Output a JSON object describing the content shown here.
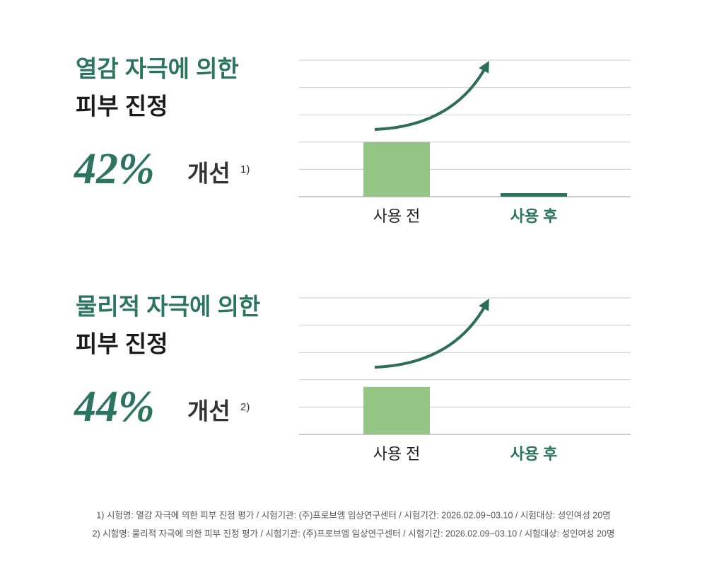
{
  "chart_data": [
    {
      "type": "bar",
      "title": [
        "열감 자극에 의한",
        "피부 진정"
      ],
      "highlight": "42%",
      "highlight_unit": "개선",
      "note_ref": "1)",
      "categories": [
        "사용 전",
        "사용 후"
      ],
      "values": [
        2,
        0.13
      ],
      "colors": [
        "#95c584",
        "#2b7560"
      ],
      "ylim": [
        0,
        5
      ],
      "yticks": [
        0,
        1,
        2,
        3,
        4,
        5
      ],
      "grid": true,
      "show_tick_labels": false,
      "arrow_color": "#2b6e5a"
    },
    {
      "type": "bar",
      "title": [
        "물리적 자극에 의한",
        "피부 진정"
      ],
      "highlight": "44%",
      "highlight_unit": "개선",
      "note_ref": "2)",
      "categories": [
        "사용 전",
        "사용 후"
      ],
      "values": [
        1.74,
        0
      ],
      "colors": [
        "#95c584",
        "#2b7560"
      ],
      "ylim": [
        0,
        5
      ],
      "yticks": [
        0,
        1,
        2,
        3,
        4,
        5
      ],
      "grid": true,
      "show_tick_labels": false,
      "arrow_color": "#2b6e5a"
    }
  ],
  "footnotes": [
    "1) 시험명: 열감 자극에 의한 피부 진정 평가 / 시험기관: (주)프로브엠 임상연구센터 / 시험기간: 2026.02.09~03.10 / 시험대상: 성인여성 20명",
    "2) 시험명: 물리적 자극에 의한 피부 진정 평가 / 시험기관: (주)프로브엠 임상연구센터 / 시험기간: 2026.02.09~03.10 / 시험대상: 성인여성 20명"
  ]
}
